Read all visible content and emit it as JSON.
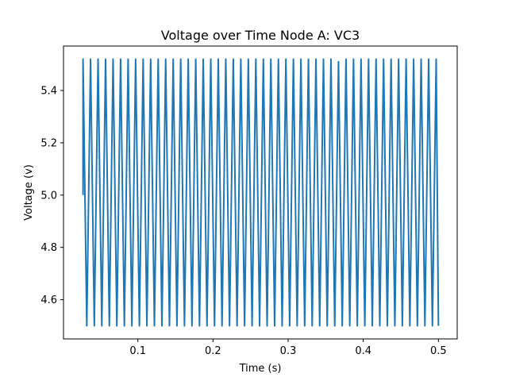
{
  "chart_data": {
    "type": "line",
    "title": "Voltage over Time Node A: VC3",
    "xlabel": "Time (s)",
    "ylabel": "Voltage (v)",
    "xlim": [
      0.001,
      0.525
    ],
    "ylim": [
      4.45,
      5.57
    ],
    "x_ticks": [
      0.1,
      0.2,
      0.3,
      0.4,
      0.5
    ],
    "x_tick_labels": [
      "0.1",
      "0.2",
      "0.3",
      "0.4",
      "0.5"
    ],
    "y_ticks": [
      4.6,
      4.8,
      5.0,
      5.2,
      5.4
    ],
    "y_tick_labels": [
      "4.6",
      "4.8",
      "5.0",
      "5.2",
      "5.4"
    ],
    "grid": false,
    "legend": "none",
    "series": [
      {
        "color": "#1f77b4",
        "x": [
          0.027,
          0.027,
          0.032,
          0.037,
          0.042,
          0.047,
          0.052,
          0.057,
          0.062,
          0.067,
          0.072,
          0.077,
          0.082,
          0.087,
          0.092,
          0.097,
          0.102,
          0.107,
          0.112,
          0.117,
          0.122,
          0.127,
          0.132,
          0.137,
          0.142,
          0.147,
          0.152,
          0.157,
          0.162,
          0.167,
          0.172,
          0.177,
          0.182,
          0.187,
          0.192,
          0.197,
          0.202,
          0.207,
          0.212,
          0.217,
          0.222,
          0.227,
          0.232,
          0.237,
          0.242,
          0.247,
          0.252,
          0.257,
          0.262,
          0.267,
          0.272,
          0.277,
          0.282,
          0.287,
          0.292,
          0.297,
          0.302,
          0.307,
          0.312,
          0.317,
          0.322,
          0.327,
          0.332,
          0.337,
          0.342,
          0.347,
          0.352,
          0.357,
          0.362,
          0.367,
          0.372,
          0.377,
          0.382,
          0.387,
          0.392,
          0.397,
          0.402,
          0.407,
          0.412,
          0.417,
          0.422,
          0.427,
          0.432,
          0.437,
          0.442,
          0.447,
          0.452,
          0.457,
          0.462,
          0.467,
          0.472,
          0.477,
          0.482,
          0.487,
          0.492,
          0.497,
          0.5
        ],
        "y": [
          5.0,
          5.52,
          4.5,
          5.52,
          4.5,
          5.52,
          4.5,
          5.52,
          4.5,
          5.52,
          4.5,
          5.52,
          4.5,
          5.52,
          4.5,
          5.52,
          4.5,
          5.52,
          4.5,
          5.52,
          4.5,
          5.52,
          4.5,
          5.52,
          4.5,
          5.52,
          4.5,
          5.52,
          4.5,
          5.52,
          4.5,
          5.52,
          4.5,
          5.52,
          4.5,
          5.52,
          4.5,
          5.52,
          4.5,
          5.52,
          4.5,
          5.52,
          4.5,
          5.52,
          4.5,
          5.52,
          4.5,
          5.52,
          4.5,
          5.52,
          4.5,
          5.52,
          4.5,
          5.52,
          4.5,
          5.52,
          4.5,
          5.52,
          4.5,
          5.52,
          4.5,
          5.52,
          4.5,
          5.52,
          4.5,
          5.52,
          4.5,
          5.52,
          4.5,
          5.51,
          4.5,
          5.52,
          4.5,
          5.52,
          4.5,
          5.52,
          4.5,
          5.52,
          4.5,
          5.52,
          4.5,
          5.52,
          4.5,
          5.52,
          4.5,
          5.52,
          4.5,
          5.52,
          4.5,
          5.52,
          4.5,
          5.52,
          4.5,
          5.52,
          4.5,
          5.52,
          4.5
        ]
      }
    ]
  }
}
